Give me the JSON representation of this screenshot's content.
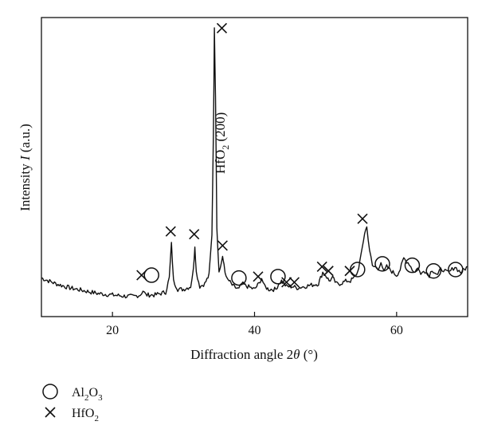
{
  "chart_data": {
    "type": "line",
    "title": "",
    "xlabel_parts": [
      "Diffraction angle 2",
      "θ",
      " (°)"
    ],
    "ylabel_parts": [
      "Intensity ",
      "I",
      " (a.u.)"
    ],
    "x_ticks": [
      20,
      40,
      60
    ],
    "xlim": [
      10,
      70
    ],
    "ylim": [
      0,
      100
    ],
    "y_ticks_labels": "none",
    "grid": false,
    "peak_annotation": {
      "x": 34.4,
      "label_main": "HfO",
      "label_sub": "2",
      "label_tail": " (200)"
    },
    "series": [
      {
        "x": [
          10,
          12,
          14,
          16,
          18,
          20,
          22,
          23,
          23.9,
          24.3,
          24.7,
          26,
          27.5,
          28.0,
          28.3,
          28.6,
          29.2,
          30,
          31,
          31.4,
          31.6,
          31.8,
          32.3,
          33,
          33.6,
          34.0,
          34.2,
          34.35,
          34.5,
          34.7,
          35.0,
          35.2,
          35.5,
          35.7,
          36.0,
          36.4,
          37,
          37.8,
          38.2,
          39,
          40,
          40.6,
          41.0,
          41.4,
          42,
          43,
          43.4,
          43.8,
          44.5,
          45.3,
          46,
          47,
          48,
          49,
          49.6,
          50.0,
          50.5,
          51.0,
          51.5,
          52,
          53,
          53.5,
          54,
          54.5,
          55,
          55.5,
          55.8,
          56.2,
          56.6,
          57,
          57.4,
          57.8,
          58.2,
          58.6,
          59,
          59.5,
          60,
          60.5,
          61,
          61.4,
          61.8,
          62.2,
          62.6,
          63,
          63.4,
          63.8,
          64.2,
          64.6,
          65,
          65.4,
          65.8,
          66.2,
          66.6,
          67,
          67.4,
          67.8,
          68.2,
          68.6,
          69,
          69.5,
          70
        ],
        "y": [
          10,
          8,
          6.5,
          5.5,
          4.5,
          4,
          3.5,
          3.5,
          4,
          5.5,
          4,
          4,
          5,
          10,
          22,
          9,
          6,
          6,
          7,
          13,
          21.5,
          12,
          7,
          8,
          11,
          25,
          60,
          98,
          75,
          28,
          12,
          14,
          17,
          15,
          10,
          9,
          7,
          6,
          8,
          7,
          6,
          8,
          10,
          7,
          6,
          6,
          8,
          9,
          7,
          7,
          6.5,
          7,
          7.5,
          8,
          12,
          11,
          9,
          10,
          8,
          8,
          9,
          9,
          10,
          12,
          18,
          26,
          28,
          20,
          14,
          14,
          13,
          16,
          12,
          14,
          13,
          12,
          11,
          13,
          17,
          16,
          15,
          13,
          12,
          14,
          11,
          13,
          12,
          11,
          13,
          12,
          11,
          13,
          13,
          12,
          12,
          13,
          14,
          13,
          12,
          13,
          14
        ]
      }
    ],
    "markers": {
      "al2o3_circle": [
        25.5,
        37.8,
        43.3,
        54.5,
        58.0,
        62.2,
        65.2,
        68.3
      ],
      "hfo2_cross": [
        24.1,
        28.2,
        31.5,
        35.5,
        35.4,
        40.5,
        44.5,
        45.6,
        49.5,
        50.4,
        53.4,
        55.2
      ],
      "marker_heights": {
        "al2o3_circle": [
          11,
          10,
          10.5,
          13,
          15,
          14.5,
          12.5,
          13
        ],
        "hfo2_cross": [
          11,
          26.5,
          25.5,
          21.5,
          98.5,
          10.5,
          8.5,
          8.5,
          14,
          12.5,
          12.5,
          31
        ]
      }
    },
    "legend": [
      {
        "marker": "circle",
        "label_main": "Al",
        "sub1": "2",
        "mid": "O",
        "sub2": "3"
      },
      {
        "marker": "cross",
        "label_main": "HfO",
        "sub1": "2",
        "mid": "",
        "sub2": ""
      }
    ],
    "legend_position": "bottom-left"
  }
}
